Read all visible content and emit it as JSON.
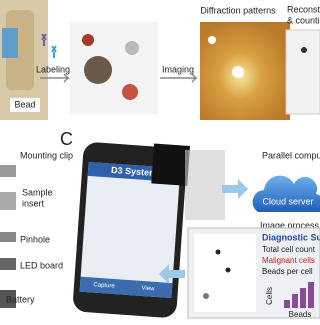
{
  "panel_top": {
    "labels": {
      "labeling": "Labeling",
      "bead": "Bead",
      "imaging": "Imaging",
      "diffraction": "Diffraction patterns",
      "reconstruction_1": "Reconstru",
      "reconstruction_2": "& countin"
    }
  },
  "panel_c": {
    "letter": "C",
    "parts": [
      "Mounting clip",
      "Sample",
      "insert",
      "Pinhole",
      "LED board",
      "Battery"
    ],
    "app": {
      "title": "D3 System",
      "buttons": [
        "Capture",
        "View"
      ]
    },
    "cloud": {
      "top": "Parallel comput",
      "label": "Cloud server",
      "bottom": "Image process"
    },
    "summary": {
      "title": "Diagnostic Su",
      "lines": [
        "Total cell count",
        "Malignant cells",
        "Beads per cell"
      ],
      "y_label": "Cells",
      "x_label": "Beads"
    }
  }
}
